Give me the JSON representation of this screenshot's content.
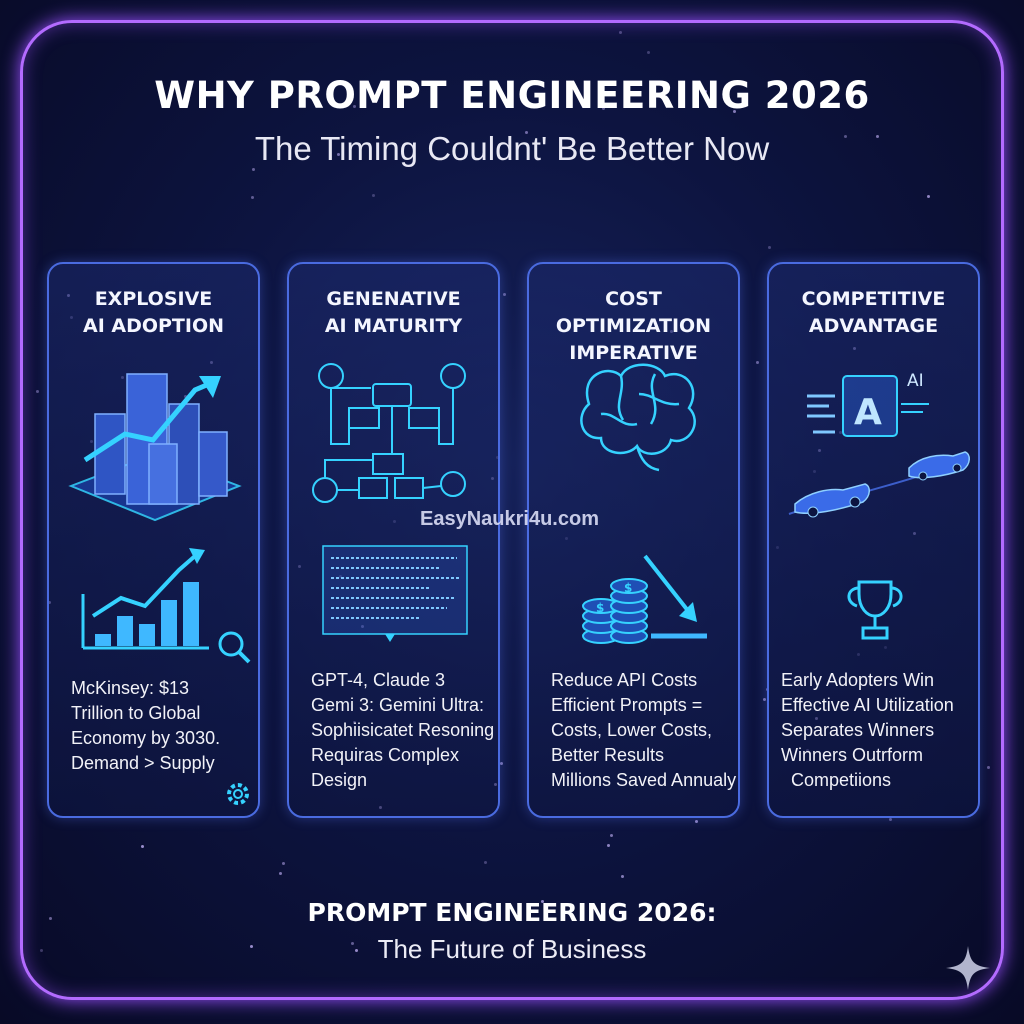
{
  "header": {
    "title": "WHY PROMPT ENGINEERING 2026",
    "subtitle": "The Timing Couldnt' Be Better Now"
  },
  "watermark": "EasyNaukri4u.com",
  "cards": [
    {
      "title_lines": [
        "EXPLOSIVE",
        "AI ADOPTION"
      ],
      "text_lines": [
        "McKinsey: $13",
        "Trillion to Global",
        "Economy by 3030.",
        "Demand > Supply"
      ],
      "icons": [
        "city-growth-icon",
        "bar-chart-icon",
        "magnifier-icon",
        "gear-icon"
      ]
    },
    {
      "title_lines": [
        "GENENATIVE",
        "AI MATURITY"
      ],
      "text_lines": [
        "GPT-4, Claude 3",
        "Gemi 3: Gemini Ultra:",
        "Sophiisicatet Resoning",
        "Requiras Complex",
        "Design"
      ],
      "icons": [
        "flowchart-icon",
        "code-panel-icon"
      ]
    },
    {
      "title_lines": [
        "COST OPTIMIZATION",
        "IMPERATIVE"
      ],
      "text_lines": [
        "Reduce API Costs",
        "Efficient Prompts =",
        "Costs, Lower Costs,",
        "Better Results",
        "Millions Saved Annualy"
      ],
      "icons": [
        "brain-icon",
        "coins-icon",
        "down-arrow-icon"
      ]
    },
    {
      "title_lines": [
        "COMPETITIVE",
        "ADVANTAGE"
      ],
      "text_lines": [
        "Early Adopters Win",
        "Effective AI Utilization",
        "Separates Winners",
        "Winners Outrform",
        "  Competiions"
      ],
      "icons": [
        "ai-screen-icon",
        "race-cars-icon",
        "trophy-icon"
      ]
    }
  ],
  "illustration_labels": {
    "ai_badge": "A",
    "ai_tag": "AI"
  },
  "footer": {
    "title": "PROMPT ENGINEERING 2026:",
    "subtitle": "The Future of Business"
  },
  "colors": {
    "frame": "#b36bff",
    "card_border": "#4a6be0",
    "accent_cyan": "#35d2ff",
    "accent_blue": "#4f7bff",
    "background": "#0b0d2a"
  }
}
